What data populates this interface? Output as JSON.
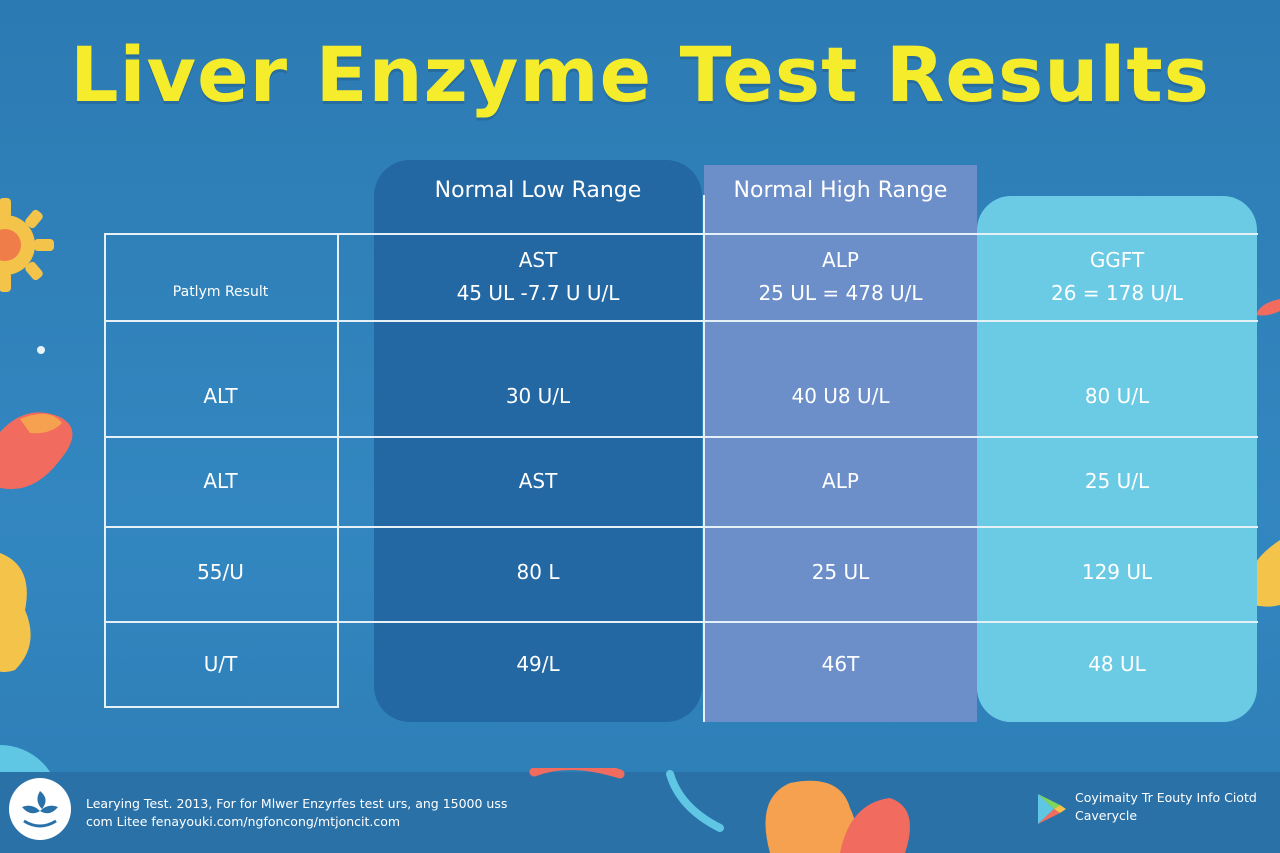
{
  "title": "Liver Enzyme Test Results",
  "colors": {
    "background": "#2f7fb8",
    "title": "#f5ec2c",
    "low_column": "#2367a3",
    "high_column": "#6c8fca",
    "ggt_column": "#6ccbe4",
    "grid": "#e6f0f7"
  },
  "column_headers": {
    "low": "Normal Low Range",
    "high": "Normal High Range"
  },
  "header_row": {
    "label": "Patlym Result",
    "low_name": "AST",
    "low_range": "45 UL -7.7 U U/L",
    "high_name": "ALP",
    "high_range": "25 UL = 478 U/L",
    "ggt_name": "GGFT",
    "ggt_range": "26 = 178 U/L"
  },
  "rows": [
    {
      "label": "ALT",
      "low": "30 U/L",
      "high": "40 U8 U/L",
      "ggt": "80 U/L"
    },
    {
      "label": "ALT",
      "low": "AST",
      "high": "ALP",
      "ggt": "25 U/L"
    },
    {
      "label": "55/U",
      "low": "80 L",
      "high": "25 UL",
      "ggt": "129 UL"
    },
    {
      "label": "U/T",
      "low": "49/L",
      "high": "46T",
      "ggt": "48 UL"
    }
  ],
  "footer": {
    "left_line1": "Learying Test. 2013, For for Mlwer Enzyrfes test urs, ang 15000 uss",
    "left_line2": "com Litee fenayouki.com/ngfoncong/mtjoncit.com",
    "right_line1": "Coyimaity Tr Eouty Info Ciotd",
    "right_line2": "Caverycle",
    "logo_icon": "leaf-logo-icon",
    "store_icon": "play-store-icon"
  }
}
